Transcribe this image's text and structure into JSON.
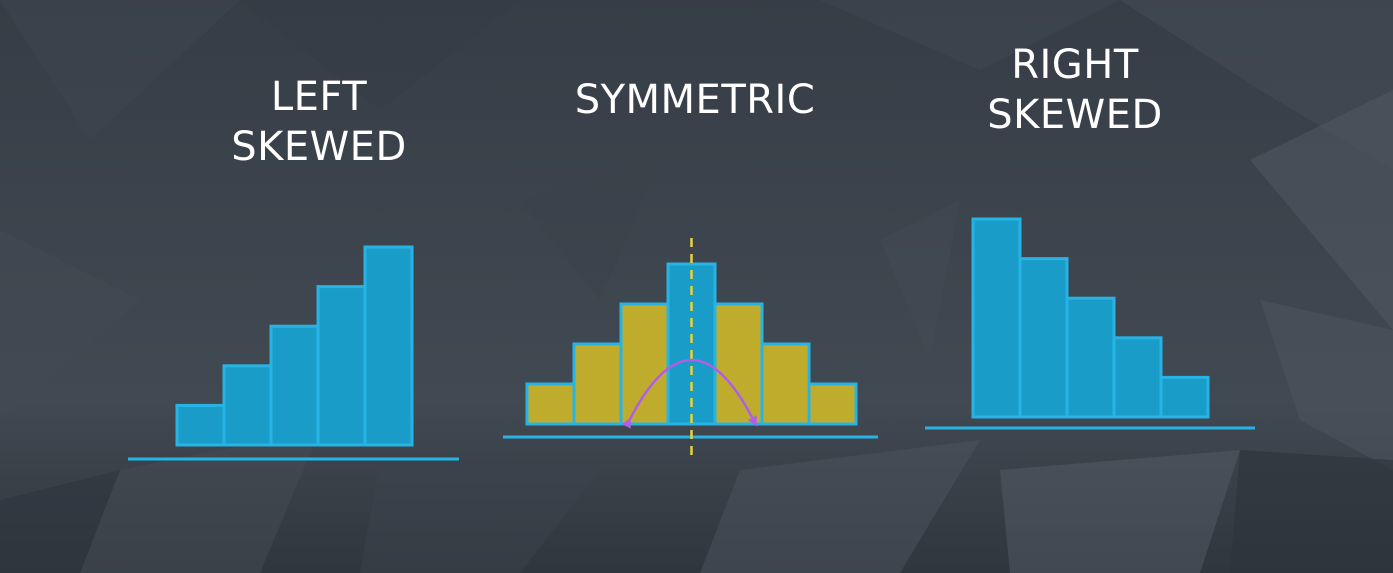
{
  "panels": {
    "left": {
      "title_line1": "LEFT",
      "title_line2": "SKEWED",
      "bar_levels": [
        1,
        2,
        3,
        4,
        5
      ]
    },
    "symmetric": {
      "title": "SYMMETRIC",
      "bar_levels": [
        1,
        2,
        3,
        4,
        3,
        2,
        1
      ],
      "center_bar_index": 3
    },
    "right": {
      "title_line1": "RIGHT",
      "title_line2": "SKEWED",
      "bar_levels": [
        5,
        4,
        3,
        2,
        1
      ]
    }
  },
  "colors": {
    "background": "#3b434d",
    "bar_fill": "#1a9cc8",
    "bar_stroke": "#27b3e4",
    "bar_fill_alt": "#c0ac2c",
    "axis_line": "#27b3e4",
    "symmetry_line": "#e6d23c",
    "arrow": "#b15ee6",
    "text": "#ffffff"
  }
}
